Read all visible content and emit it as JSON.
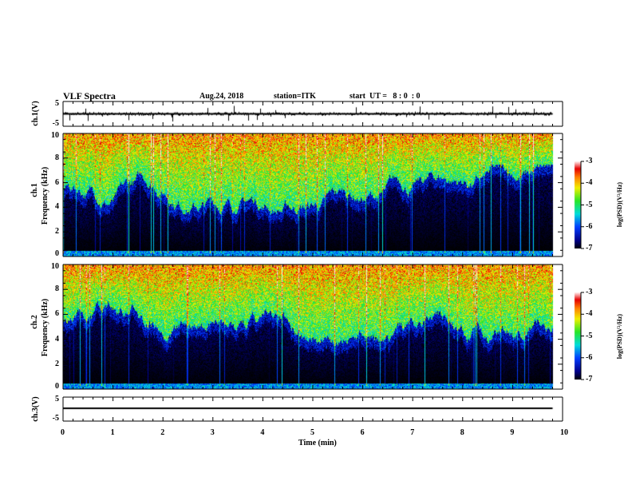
{
  "header": {
    "title": "VLF Spectra",
    "date": "Aug.24, 2018",
    "station": "station=ITK",
    "start": "start  UT =   8 : 0  : 0"
  },
  "chart_data": [
    {
      "type": "line",
      "name": "ch1-waveform",
      "ylabel": "ch.1(V)",
      "ylim": [
        -5,
        5
      ],
      "yticks": [
        "5",
        "-5"
      ],
      "xlim": [
        0,
        10
      ]
    },
    {
      "type": "heatmap",
      "name": "ch1-spectrogram",
      "ylabel_top": "ch.1",
      "ylabel": "Frequency (kHz)",
      "ylim": [
        0,
        10
      ],
      "yticks": [
        "0",
        "2",
        "4",
        "6",
        "8",
        "10"
      ],
      "xlim": [
        0,
        10
      ],
      "colorbar": {
        "label": "log(PSD)(V²/Hz)",
        "range": [
          -7,
          -3
        ],
        "ticks": [
          "-3",
          "-4",
          "-5",
          "-6",
          "-7"
        ]
      }
    },
    {
      "type": "heatmap",
      "name": "ch2-spectrogram",
      "ylabel_top": "ch.2",
      "ylabel": "Frequency (kHz)",
      "ylim": [
        0,
        10
      ],
      "yticks": [
        "0",
        "2",
        "4",
        "6",
        "8",
        "10"
      ],
      "xlim": [
        0,
        10
      ],
      "colorbar": {
        "label": "log(PSD)(V²/Hz)",
        "range": [
          -7,
          -3
        ],
        "ticks": [
          "-3",
          "-4",
          "-5",
          "-6",
          "-7"
        ]
      }
    },
    {
      "type": "line",
      "name": "ch3-waveform",
      "ylabel": "ch.3(V)",
      "ylim": [
        -5,
        5
      ],
      "yticks": [
        "5",
        "-5"
      ],
      "xlim": [
        0,
        10
      ]
    }
  ],
  "xaxis": {
    "label": "Time  (min)",
    "ticks": [
      "0",
      "1",
      "2",
      "3",
      "4",
      "5",
      "6",
      "7",
      "8",
      "9",
      "10"
    ],
    "data_end_min": 9.8
  }
}
